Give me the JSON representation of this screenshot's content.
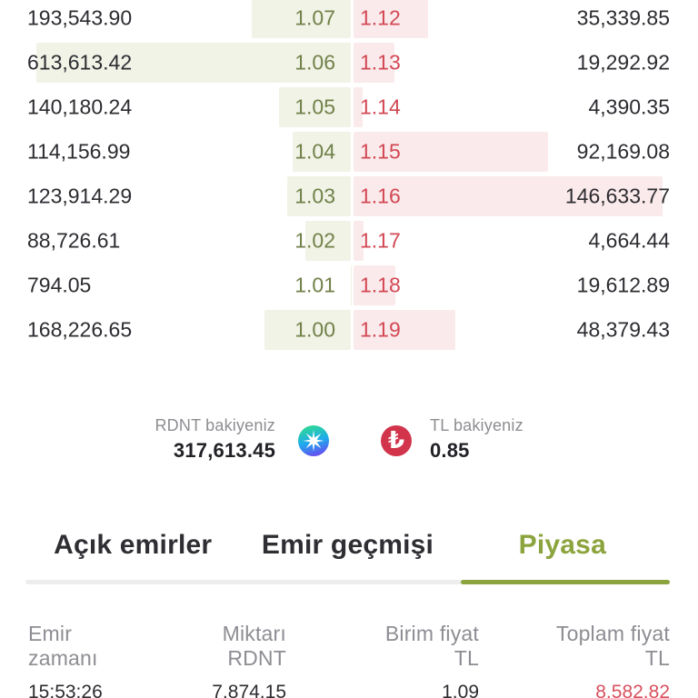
{
  "orderbook": {
    "bids": [
      {
        "amount": "193,543.90",
        "price": "1.07"
      },
      {
        "amount": "613,613.42",
        "price": "1.06"
      },
      {
        "amount": "140,180.24",
        "price": "1.05"
      },
      {
        "amount": "114,156.99",
        "price": "1.04"
      },
      {
        "amount": "123,914.29",
        "price": "1.03"
      },
      {
        "amount": "88,726.61",
        "price": "1.02"
      },
      {
        "amount": "794.05",
        "price": "1.01"
      },
      {
        "amount": "168,226.65",
        "price": "1.00"
      }
    ],
    "asks": [
      {
        "price": "1.12",
        "amount": "35,339.85"
      },
      {
        "price": "1.13",
        "amount": "19,292.92"
      },
      {
        "price": "1.14",
        "amount": "4,390.35"
      },
      {
        "price": "1.15",
        "amount": "92,169.08"
      },
      {
        "price": "1.16",
        "amount": "146,633.77"
      },
      {
        "price": "1.17",
        "amount": "4,664.44"
      },
      {
        "price": "1.18",
        "amount": "19,612.89"
      },
      {
        "price": "1.19",
        "amount": "48,379.43"
      }
    ],
    "bid_bar_color": "#f0f3e6",
    "ask_bar_color": "#fbeaec",
    "bid_price_color": "#72814a",
    "ask_price_color": "#d24854"
  },
  "balances": {
    "rdnt_label": "RDNT bakiyeniz",
    "rdnt_value": "317,613.45",
    "tl_label": "TL bakiyeniz",
    "tl_value": "0.85",
    "tl_symbol": "₺",
    "tl_icon_color": "#d2344b"
  },
  "tabs": [
    {
      "label": "Açık emirler",
      "active": false
    },
    {
      "label": "Emir geçmişi",
      "active": false
    },
    {
      "label": "Piyasa",
      "active": true
    }
  ],
  "accent_color": "#8ca43d",
  "history_table": {
    "headers": [
      {
        "line1": "Emir",
        "line2": "zamanı"
      },
      {
        "line1": "Miktarı",
        "line2": "RDNT"
      },
      {
        "line1": "Birim fiyat",
        "line2": "TL"
      },
      {
        "line1": "Toplam fiyat",
        "line2": "TL"
      }
    ],
    "rows": [
      {
        "time": "15:53:26",
        "amount": "7,874.15",
        "unit_price": "1.09",
        "total": "8,582.82",
        "total_color": "#d8505e"
      }
    ]
  }
}
